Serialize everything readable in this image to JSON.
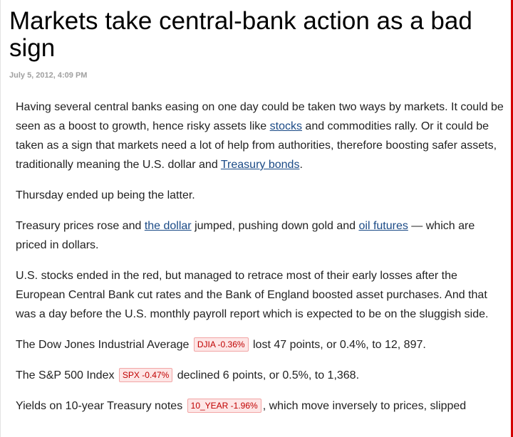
{
  "article": {
    "headline": "Markets take central-bank action as a bad sign",
    "dateline": "July 5, 2012, 4:09 PM",
    "p1": {
      "t1": "Having several central banks easing on one day could be taken two ways by markets. It could be seen as a boost to growth, hence risky assets like ",
      "link1": "stocks",
      "t2": " and commodities rally. Or it could be taken as a sign that markets need a lot of help from authorities, therefore boosting safer assets, traditionally meaning the U.S. dollar and ",
      "link2": "Treasury bonds",
      "t3": "."
    },
    "p2": "Thursday ended up being the latter.",
    "p3": {
      "t1": "Treasury prices rose and ",
      "link1": "the dollar",
      "t2": " jumped, pushing down gold and ",
      "link2": "oil futures",
      "t3": " — which are priced in dollars."
    },
    "p4": "U.S. stocks ended in the red, but managed to retrace most of their early losses after the European Central Bank cut rates and the Bank of England boosted asset purchases. And that was a day before the U.S. monthly payroll report which is expected to be on the sluggish side.",
    "p5": {
      "t1": "The Dow Jones Industrial Average ",
      "ticker": "DJIA -0.36%",
      "t2": " lost 47 points, or 0.4%, to 12, 897."
    },
    "p6": {
      "t1": "The S&P 500 Index ",
      "ticker": "SPX -0.47%",
      "t2": " declined 6 points, or 0.5%, to 1,368."
    },
    "p7": {
      "t1": "Yields on 10-year Treasury notes ",
      "ticker": "10_YEAR -1.96%",
      "t2": ", which move inversely to prices, slipped"
    }
  },
  "colors": {
    "link": "#1a4a86",
    "ticker_text": "#c00000",
    "ticker_bg": "#fde6e6",
    "frame_accent": "#d40000"
  }
}
